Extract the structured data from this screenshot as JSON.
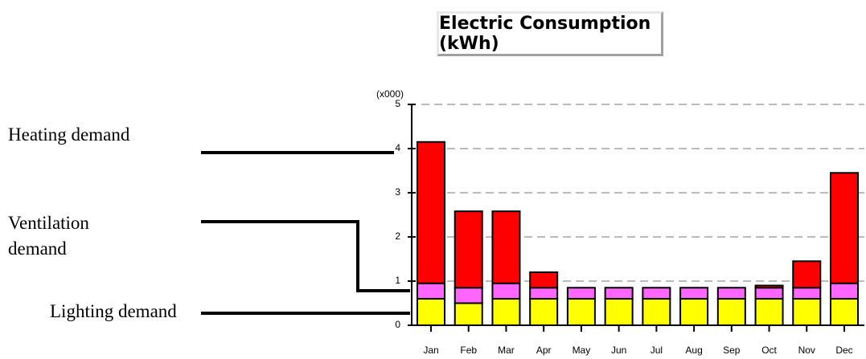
{
  "chart_data": {
    "type": "stacked_bar",
    "title": "Electric Consumption (kWh)",
    "y_label": "(x000)",
    "categories": [
      "Jan",
      "Feb",
      "Mar",
      "Apr",
      "May",
      "Jun",
      "Jul",
      "Aug",
      "Sep",
      "Oct",
      "Nov",
      "Dec"
    ],
    "series": [
      {
        "name": "Lighting demand",
        "color": "#ffff00",
        "values": [
          0.6,
          0.5,
          0.6,
          0.6,
          0.6,
          0.6,
          0.6,
          0.6,
          0.6,
          0.6,
          0.6,
          0.6
        ]
      },
      {
        "name": "Ventilation demand",
        "color": "#ff66ff",
        "values": [
          0.35,
          0.35,
          0.35,
          0.25,
          0.25,
          0.25,
          0.25,
          0.25,
          0.25,
          0.25,
          0.25,
          0.35
        ]
      },
      {
        "name": "Heating demand",
        "color": "#ff0000",
        "values": [
          3.2,
          1.73,
          1.63,
          0.35,
          0,
          0,
          0,
          0,
          0,
          0.05,
          0.6,
          2.5
        ]
      }
    ],
    "ylim": [
      0,
      5
    ],
    "yticks": [
      0,
      1,
      2,
      3,
      4,
      5
    ],
    "grid": true
  }
}
